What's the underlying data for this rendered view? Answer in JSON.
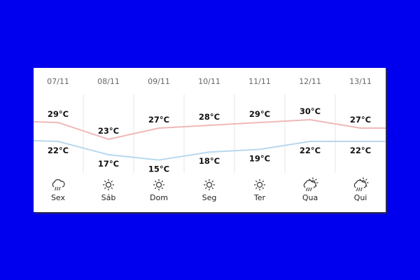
{
  "chart_data": {
    "type": "line",
    "categories": [
      "07/11",
      "08/11",
      "09/11",
      "10/11",
      "11/11",
      "12/11",
      "13/11"
    ],
    "days": [
      "Sex",
      "Sáb",
      "Dom",
      "Seg",
      "Ter",
      "Qua",
      "Qui"
    ],
    "icons": [
      "rain-cloud",
      "sun",
      "sun",
      "sun",
      "sun",
      "sun-cloud-rain",
      "sun-cloud-rain"
    ],
    "unit": "°C",
    "series": [
      {
        "key": "max",
        "values": [
          29,
          23,
          27,
          28,
          29,
          30,
          27
        ],
        "color": "#f0b8b8"
      },
      {
        "key": "min",
        "values": [
          22,
          17,
          15,
          18,
          19,
          22,
          22
        ],
        "color": "#b8d8ee"
      }
    ]
  }
}
